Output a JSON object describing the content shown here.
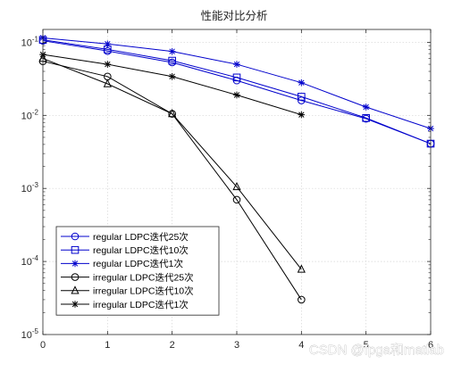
{
  "chart_data": {
    "type": "line",
    "title": "性能对比分析",
    "xlabel": "",
    "ylabel": "",
    "xlim": [
      0,
      6
    ],
    "ylim": [
      1e-05,
      0.15
    ],
    "yscale": "log",
    "grid": true,
    "legend_position": "bottom-left",
    "x_ticks": [
      "0",
      "1",
      "2",
      "3",
      "4",
      "5",
      "6"
    ],
    "y_ticks": [
      {
        "value": 0.1,
        "mantissa": "10",
        "exp": "-1"
      },
      {
        "value": 0.01,
        "mantissa": "10",
        "exp": "-2"
      },
      {
        "value": 0.001,
        "mantissa": "10",
        "exp": "-3"
      },
      {
        "value": 0.0001,
        "mantissa": "10",
        "exp": "-4"
      },
      {
        "value": 1e-05,
        "mantissa": "10",
        "exp": "-5"
      }
    ],
    "series": [
      {
        "name": "regular LDPC迭代25次",
        "marker": "circle",
        "color": "#0000cc",
        "x": [
          0,
          1,
          2,
          3,
          4,
          5,
          6
        ],
        "y": [
          0.105,
          0.076,
          0.053,
          0.03,
          0.016,
          0.009,
          0.0041
        ]
      },
      {
        "name": "regular LDPC迭代10次",
        "marker": "square",
        "color": "#0000cc",
        "x": [
          0,
          1,
          2,
          3,
          4,
          5,
          6
        ],
        "y": [
          0.108,
          0.08,
          0.056,
          0.033,
          0.018,
          0.0092,
          0.0041
        ]
      },
      {
        "name": "regular LDPC迭代1次",
        "marker": "asterisk",
        "color": "#0000cc",
        "x": [
          0,
          1,
          2,
          3,
          4,
          5,
          6
        ],
        "y": [
          0.115,
          0.095,
          0.075,
          0.05,
          0.028,
          0.013,
          0.0066
        ]
      },
      {
        "name": "irregular LDPC迭代25次",
        "marker": "circle",
        "color": "#000000",
        "x": [
          0,
          1,
          2,
          3,
          4
        ],
        "y": [
          0.055,
          0.034,
          0.0105,
          0.0007,
          3e-05
        ]
      },
      {
        "name": "irregular LDPC迭代10次",
        "marker": "triangle",
        "color": "#000000",
        "x": [
          0,
          1,
          2,
          3,
          4
        ],
        "y": [
          0.06,
          0.027,
          0.0105,
          0.00105,
          7.8e-05
        ]
      },
      {
        "name": "irregular LDPC迭代1次",
        "marker": "asterisk",
        "color": "#000000",
        "x": [
          0,
          1,
          2,
          3,
          4
        ],
        "y": [
          0.068,
          0.05,
          0.034,
          0.019,
          0.0102
        ]
      }
    ]
  },
  "watermark": "CSDN @fpga和matlab"
}
